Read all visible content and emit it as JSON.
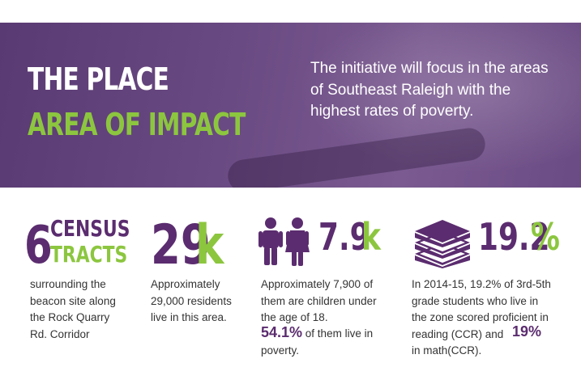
{
  "header": {
    "title_line1": "THE PLACE",
    "title_line2": "AREA OF IMPACT",
    "intro": "The initiative will focus in the areas of Southeast Raleigh with the highest rates of poverty."
  },
  "stats": [
    {
      "number": "6",
      "label_top": "CENSUS",
      "label_bottom": "TRACTS",
      "description": "surrounding the beacon site along the Rock Quarry Rd. Corridor"
    },
    {
      "number": "29",
      "unit": "k",
      "description": "Approximately 29,000 residents live in this area."
    },
    {
      "icon": "children-icon",
      "number": "7.9",
      "unit": "k",
      "description": "Approximately 7,900 of them are children under the age of 18.",
      "highlight": "54.1%",
      "highlight_text": " of them live in poverty."
    },
    {
      "icon": "books-icon",
      "number": "19.2",
      "unit": "%",
      "description": "In 2014-15, 19.2% of 3rd-5th grade students who live in the zone scored proficient in reading (CCR) and",
      "highlight": "19%",
      "highlight_text": "in math(CCR)."
    }
  ],
  "colors": {
    "purple": "#5b2c6f",
    "green": "#8cc63f",
    "banner": "#6a4a82"
  }
}
